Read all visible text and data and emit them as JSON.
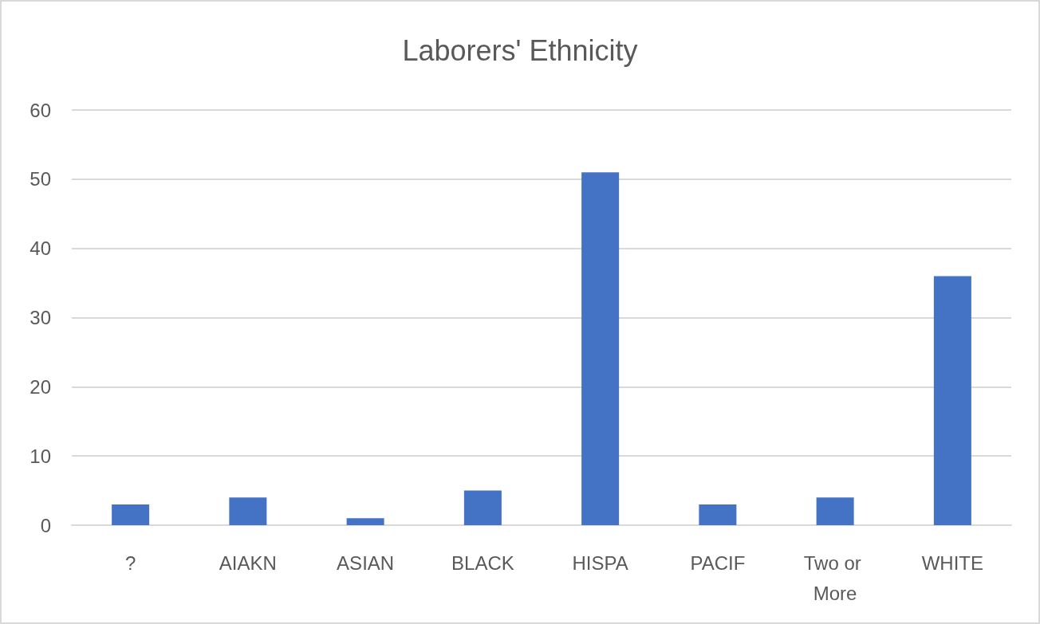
{
  "chart_data": {
    "type": "bar",
    "title": "Laborers' Ethnicity",
    "categories": [
      "?",
      "AIAKN",
      "ASIAN",
      "BLACK",
      "HISPA",
      "PACIF",
      "Two or More",
      "WHITE"
    ],
    "values": [
      3,
      4,
      1,
      5,
      51,
      3,
      4,
      36
    ],
    "color": "#4472c4",
    "ylim": [
      0,
      60
    ],
    "yticks": [
      0,
      10,
      20,
      30,
      40,
      50,
      60
    ],
    "grid": "y"
  }
}
